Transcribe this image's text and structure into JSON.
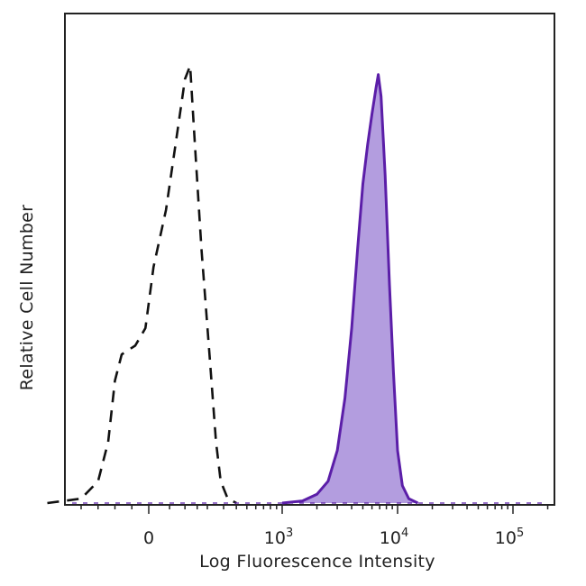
{
  "chart_data": {
    "type": "area",
    "title": "",
    "xlabel": "Log Fluorescence Intensity",
    "ylabel": "Relative Cell Number",
    "x_scale": "biexponential",
    "xlim": [
      -300,
      200000
    ],
    "ylim": [
      0,
      1
    ],
    "grid": false,
    "legend": "none",
    "x_ticks": [
      {
        "value": 0,
        "base": "0",
        "exp": ""
      },
      {
        "value": 1000,
        "base": "10",
        "exp": "3"
      },
      {
        "value": 10000,
        "base": "10",
        "exp": "4"
      },
      {
        "value": 100000,
        "base": "10",
        "exp": "5"
      }
    ],
    "series": [
      {
        "style": "dashed",
        "fill": false,
        "color": "#111111",
        "points": [
          [
            -300,
            0.0
          ],
          [
            -200,
            0.01
          ],
          [
            -150,
            0.05
          ],
          [
            -120,
            0.14
          ],
          [
            -100,
            0.28
          ],
          [
            -80,
            0.34
          ],
          [
            -40,
            0.36
          ],
          [
            -10,
            0.4
          ],
          [
            10,
            0.54
          ],
          [
            40,
            0.67
          ],
          [
            70,
            0.83
          ],
          [
            100,
            0.97
          ],
          [
            120,
            1.0
          ],
          [
            140,
            0.82
          ],
          [
            170,
            0.58
          ],
          [
            210,
            0.35
          ],
          [
            250,
            0.14
          ],
          [
            280,
            0.05
          ],
          [
            330,
            0.01
          ],
          [
            400,
            0.0
          ]
        ]
      },
      {
        "style": "solid",
        "fill": true,
        "color": "#5b1ea8",
        "fill_color": "#b39ddf",
        "points": [
          [
            1000,
            0.0
          ],
          [
            1500,
            0.005
          ],
          [
            2000,
            0.02
          ],
          [
            2500,
            0.05
          ],
          [
            3000,
            0.12
          ],
          [
            3500,
            0.24
          ],
          [
            4000,
            0.4
          ],
          [
            4500,
            0.58
          ],
          [
            5000,
            0.73
          ],
          [
            5500,
            0.82
          ],
          [
            6000,
            0.89
          ],
          [
            6500,
            0.95
          ],
          [
            6800,
            0.98
          ],
          [
            7200,
            0.93
          ],
          [
            7800,
            0.75
          ],
          [
            8500,
            0.5
          ],
          [
            9200,
            0.3
          ],
          [
            10000,
            0.12
          ],
          [
            11000,
            0.04
          ],
          [
            12500,
            0.01
          ],
          [
            15000,
            0.0
          ]
        ]
      }
    ]
  }
}
